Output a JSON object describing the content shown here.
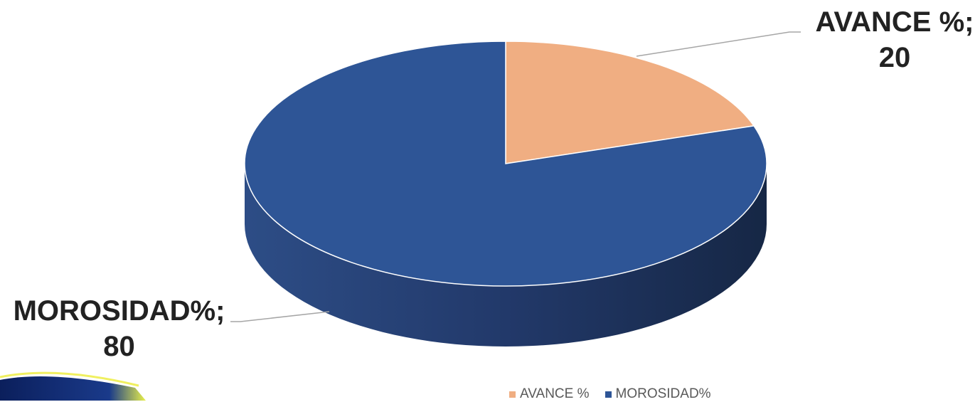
{
  "chart_data": {
    "type": "pie",
    "style": "3d",
    "categories": [
      "AVANCE %",
      "MOROSIDAD%"
    ],
    "values": [
      20,
      80
    ],
    "colors": [
      "#F0AE82",
      "#2E5596"
    ],
    "data_labels": [
      {
        "line1": "AVANCE %;",
        "line2": "20"
      },
      {
        "line1": "MOROSIDAD%;",
        "line2": "80"
      }
    ],
    "legend_position": "bottom",
    "title": ""
  },
  "legend": {
    "items": [
      {
        "label": "AVANCE %",
        "color": "#F0AE82"
      },
      {
        "label": "MOROSIDAD%",
        "color": "#2E5596"
      }
    ]
  }
}
